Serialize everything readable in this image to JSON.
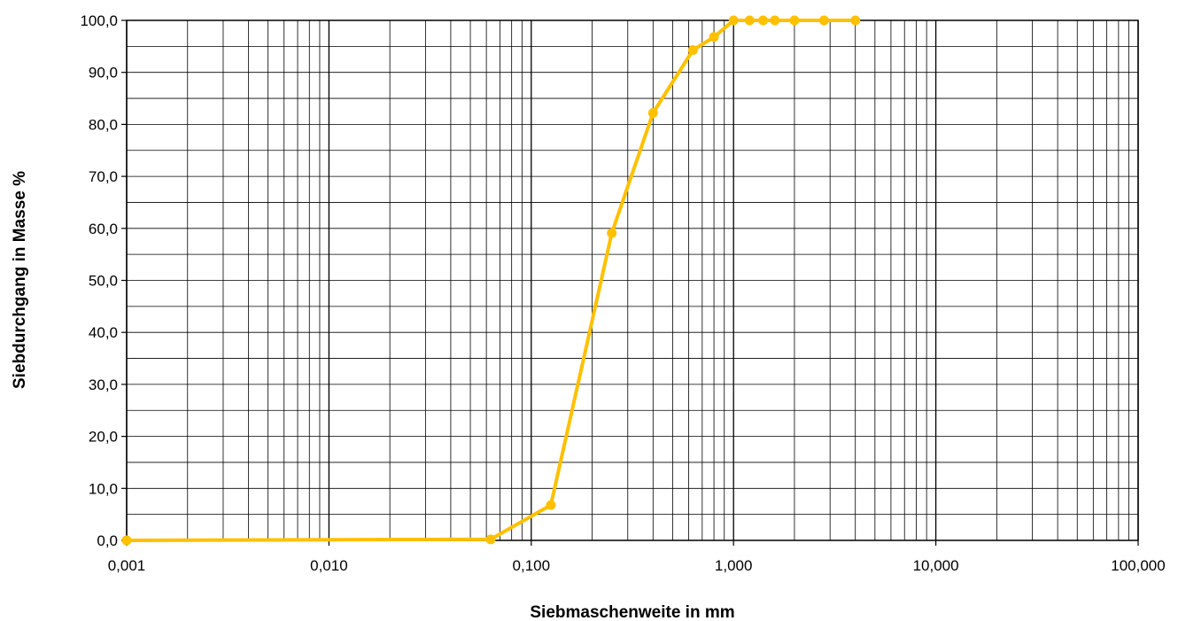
{
  "chart_data": {
    "type": "line",
    "title": "",
    "xlabel": "Siebmaschenweite in mm",
    "ylabel": "Siebdurchgang in Masse %",
    "x_scale": "log",
    "xlim": [
      0.001,
      100
    ],
    "ylim": [
      0,
      100
    ],
    "x_ticks": [
      0.001,
      0.01,
      0.1,
      1,
      10,
      100
    ],
    "x_tick_labels": [
      "0,001",
      "0,010",
      "0,100",
      "1,000",
      "10,000",
      "100,000"
    ],
    "y_ticks": [
      0,
      10,
      20,
      30,
      40,
      50,
      60,
      70,
      80,
      90,
      100
    ],
    "y_tick_labels": [
      "0,0",
      "10,0",
      "20,0",
      "30,0",
      "40,0",
      "50,0",
      "60,0",
      "70,0",
      "80,0",
      "90,0",
      "100,0"
    ],
    "grid": true,
    "legend": "none",
    "series": [
      {
        "color": "#FFC000",
        "x": [
          0.001,
          0.063,
          0.125,
          0.25,
          0.4,
          0.63,
          0.8,
          1.0,
          1.2,
          1.4,
          1.6,
          2.0,
          2.8,
          4.0
        ],
        "y": [
          0.0,
          0.2,
          6.8,
          59.1,
          82.2,
          94.3,
          96.8,
          100.0,
          100.0,
          100.0,
          100.0,
          100.0,
          100.0,
          100.0
        ]
      }
    ]
  }
}
